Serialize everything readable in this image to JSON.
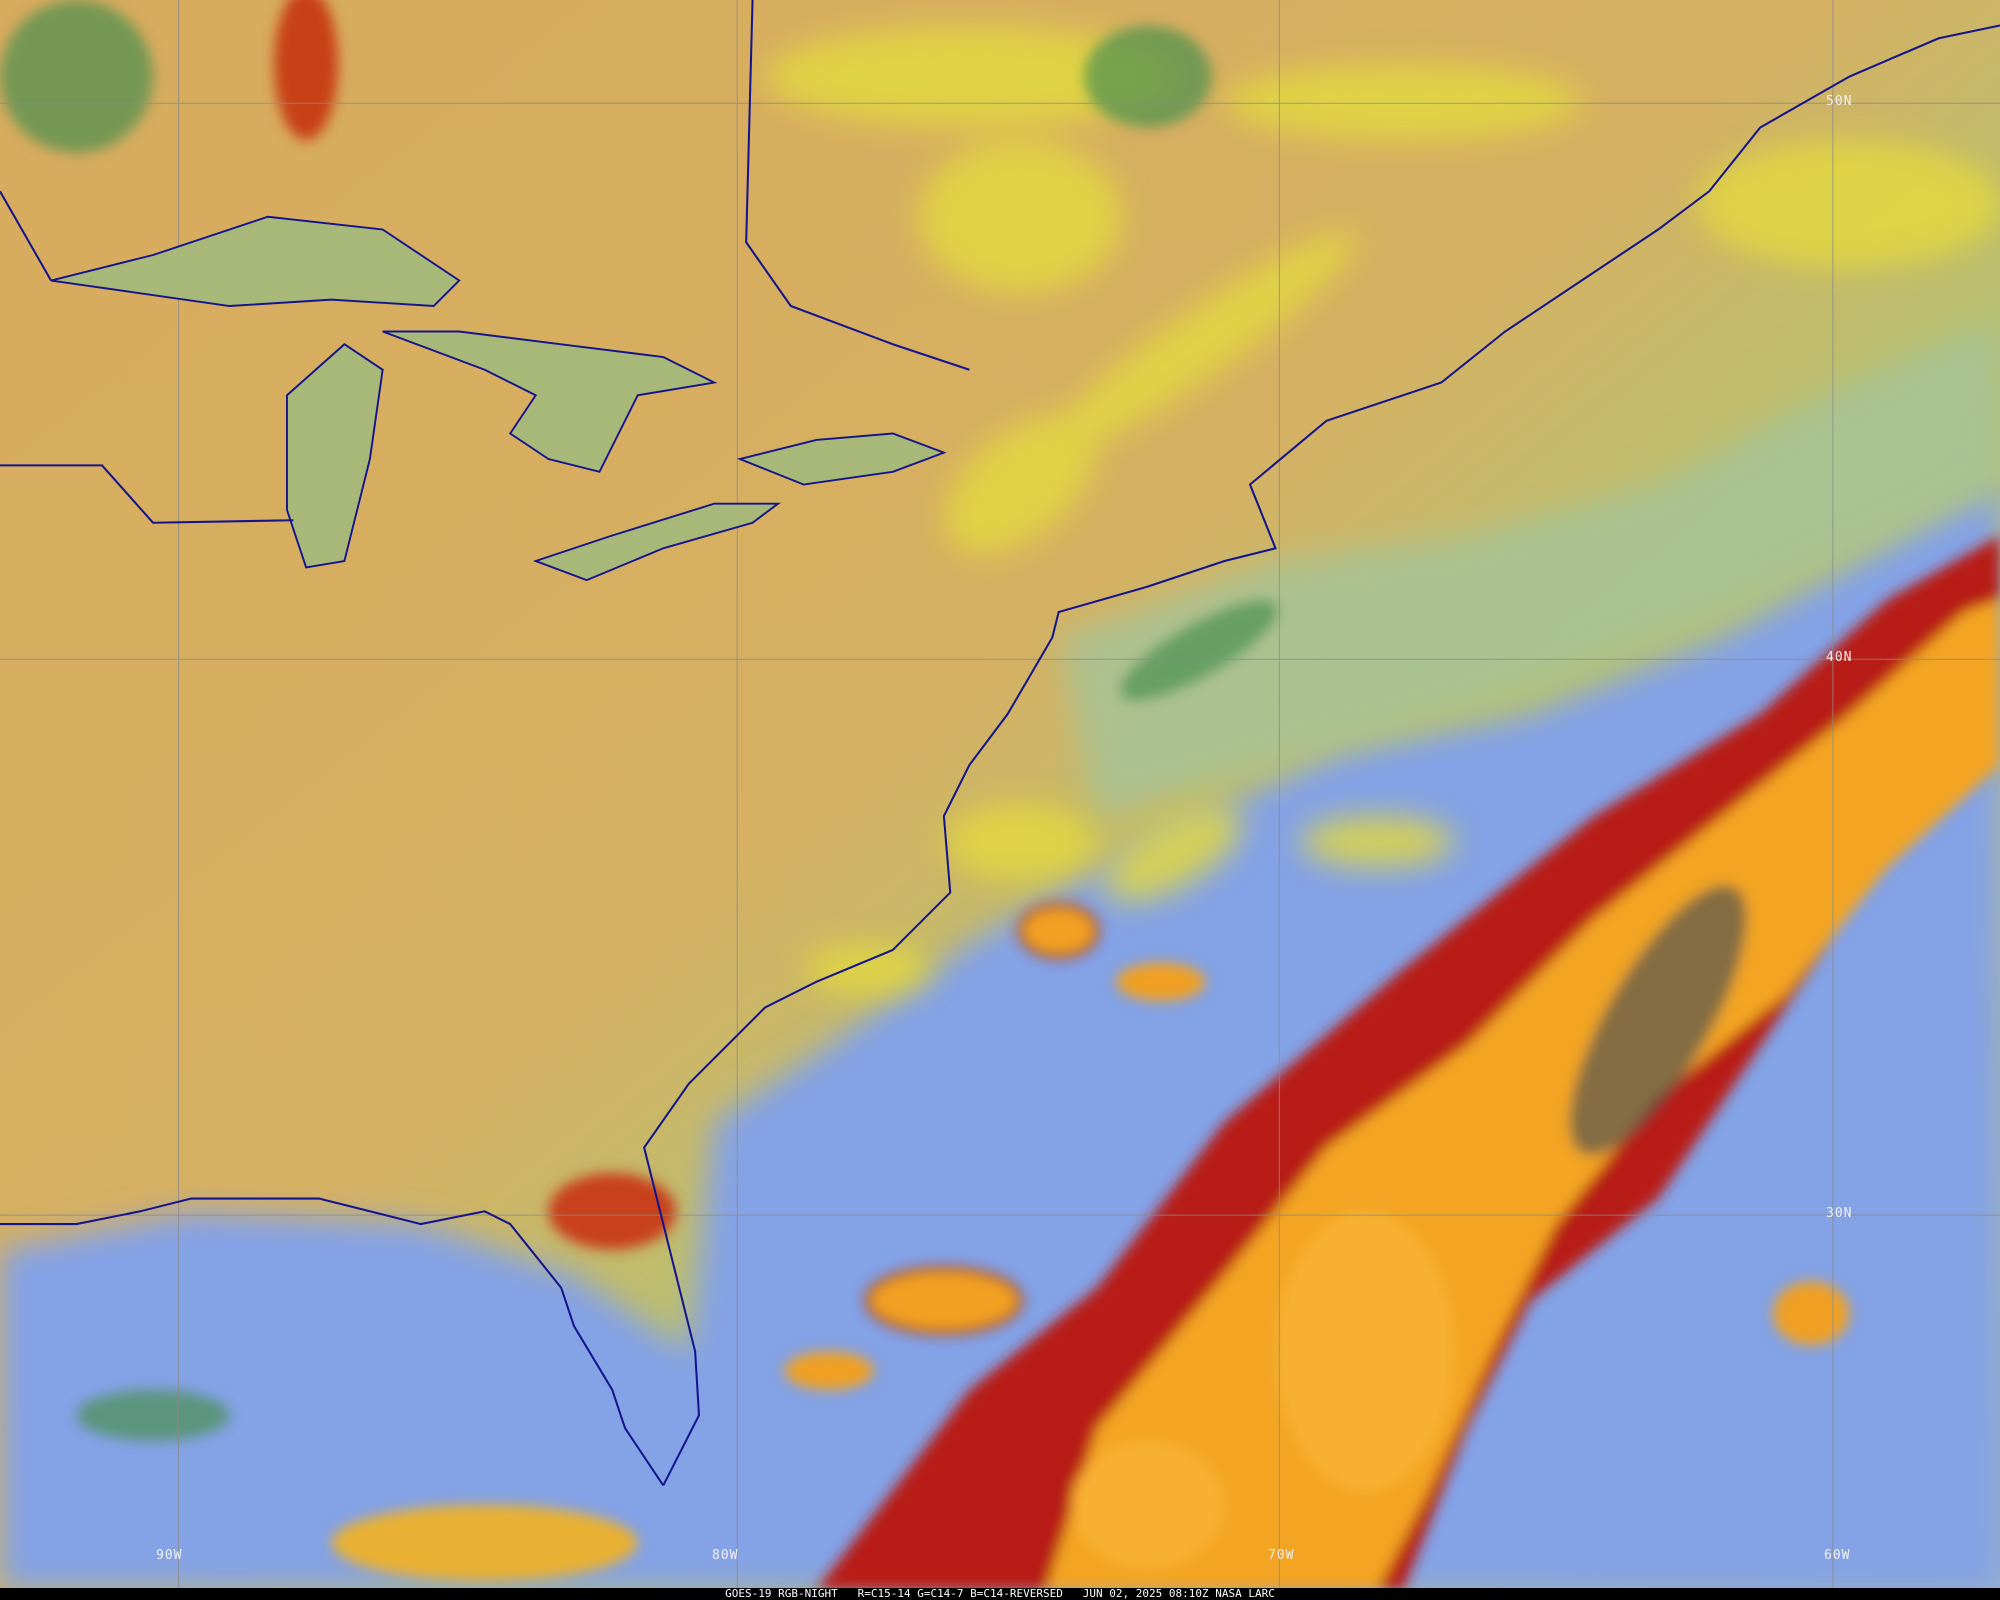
{
  "caption": {
    "satellite": "GOES-19 RGB-NIGHT",
    "channels": "R=C15-14 G=C14-7 B=C14-REVERSED",
    "timestamp": "JUN 02, 2025 08:10Z",
    "source": "NASA LARC"
  },
  "grid_labels": {
    "lat": [
      "50N",
      "40N",
      "30N"
    ],
    "lon": [
      "90W",
      "80W",
      "70W",
      "60W"
    ]
  },
  "colors": {
    "land": "#d9a85a",
    "ocean": "#7f9fe0",
    "high_cloud": "#f0a020",
    "deep_cloud": "#b01818",
    "low_cloud": "#e0d840",
    "boundaries": "#14148c",
    "grid": "#8a8a8a"
  }
}
